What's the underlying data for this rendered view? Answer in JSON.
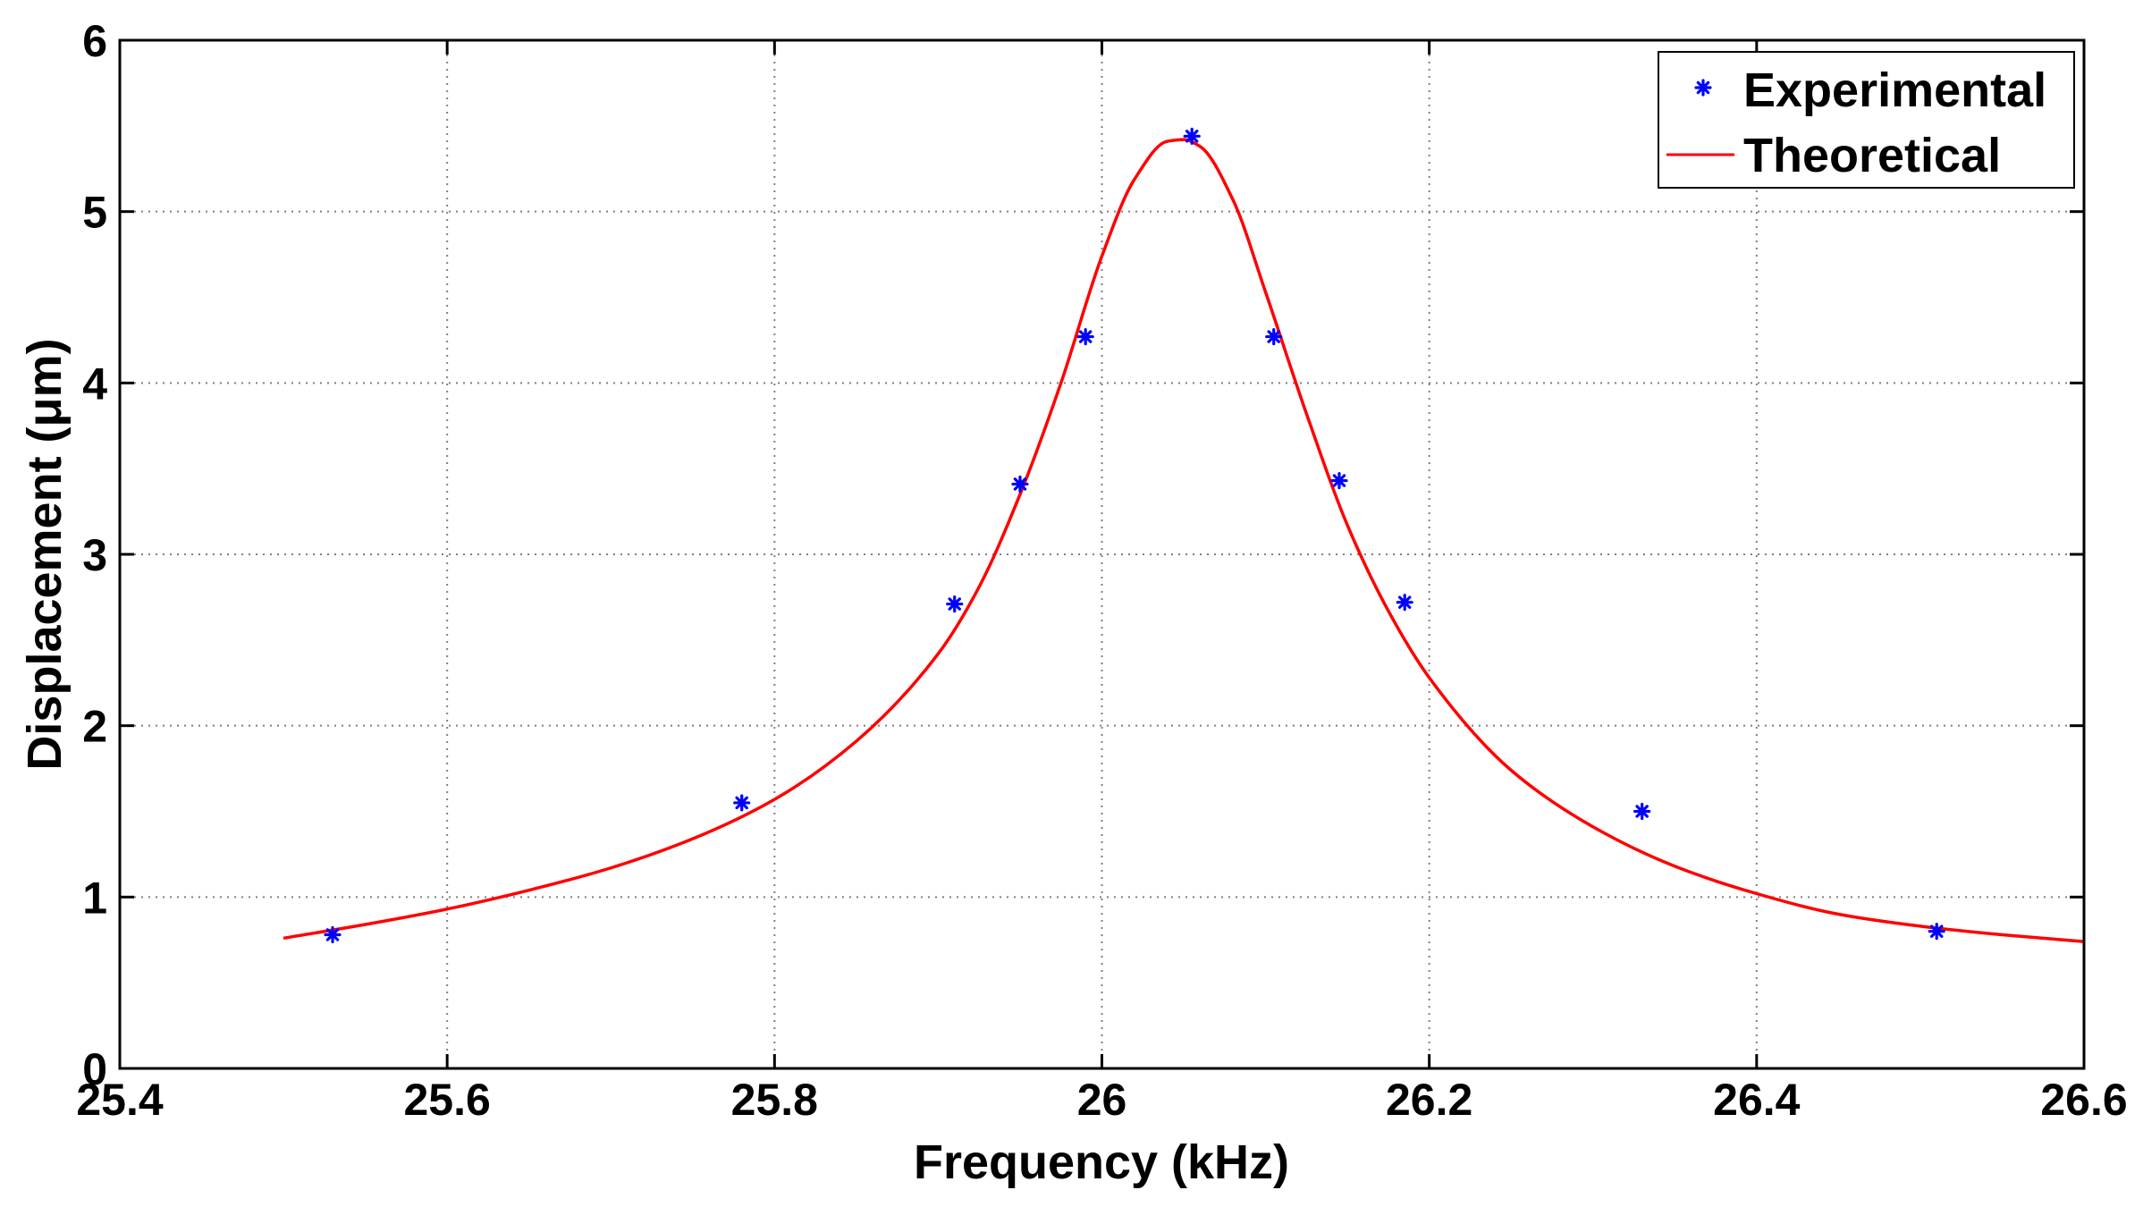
{
  "chart_data": {
    "type": "scatter",
    "xlabel": "Frequency (kHz)",
    "ylabel": "Displacement (μm)",
    "xlim": [
      25.4,
      26.6
    ],
    "ylim": [
      0,
      6
    ],
    "xticks": [
      25.4,
      25.6,
      25.8,
      26,
      26.2,
      26.4,
      26.6
    ],
    "xtick_labels": [
      "25.4",
      "25.6",
      "25.8",
      "26",
      "26.2",
      "26.4",
      "26.6"
    ],
    "yticks": [
      0,
      1,
      2,
      3,
      4,
      5,
      6
    ],
    "ytick_labels": [
      "0",
      "1",
      "2",
      "3",
      "4",
      "5",
      "6"
    ],
    "grid": true,
    "legend_position": "top-right",
    "series": [
      {
        "name": "Experimental",
        "type": "scatter",
        "marker": "*",
        "color": "#0000ff",
        "x": [
          25.53,
          25.78,
          25.91,
          25.95,
          25.99,
          26.055,
          26.105,
          26.145,
          26.185,
          26.33,
          26.51
        ],
        "y": [
          0.78,
          1.55,
          2.71,
          3.41,
          4.27,
          5.44,
          4.27,
          3.43,
          2.72,
          1.5,
          0.8
        ]
      },
      {
        "name": "Theoretical",
        "type": "line",
        "color": "#ff0000",
        "x": [
          25.5,
          25.55,
          25.6,
          25.65,
          25.7,
          25.75,
          25.8,
          25.85,
          25.9,
          25.925,
          25.95,
          25.975,
          26.0,
          26.02,
          26.04,
          26.05,
          26.06,
          26.08,
          26.1,
          26.125,
          26.15,
          26.175,
          26.2,
          26.25,
          26.3,
          26.35,
          26.4,
          26.45,
          26.5,
          26.55,
          26.6
        ],
        "y": [
          0.76,
          0.84,
          0.93,
          1.04,
          1.17,
          1.34,
          1.57,
          1.91,
          2.42,
          2.81,
          3.35,
          4.0,
          4.74,
          5.19,
          5.41,
          5.42,
          5.38,
          5.07,
          4.53,
          3.82,
          3.17,
          2.67,
          2.28,
          1.74,
          1.41,
          1.18,
          1.02,
          0.9,
          0.83,
          0.78,
          0.74
        ]
      }
    ]
  }
}
